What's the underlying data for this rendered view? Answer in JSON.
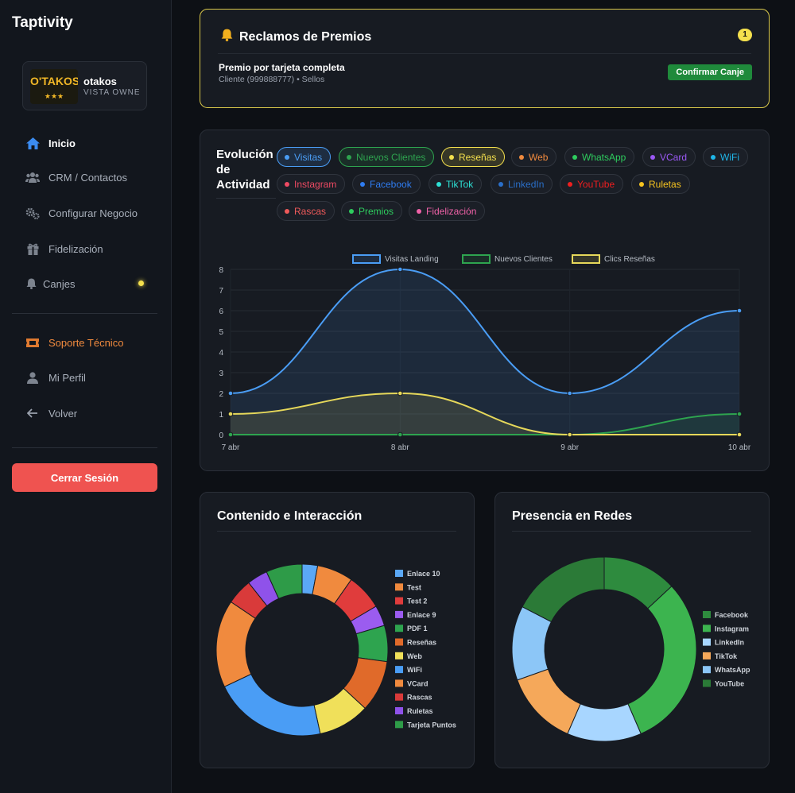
{
  "app": {
    "title": "Taptivity"
  },
  "business": {
    "name": "otakos",
    "role": "VISTA OWNER",
    "logo_text": "O'TAKOS"
  },
  "nav": {
    "items": [
      {
        "label": "Inicio",
        "icon": "home-icon"
      },
      {
        "label": "CRM / Contactos",
        "icon": "users-icon"
      },
      {
        "label": "Configurar Negocio",
        "icon": "gears-icon"
      },
      {
        "label": "Fidelización",
        "icon": "gift-icon"
      },
      {
        "label": "Canjes",
        "icon": "bell-icon"
      }
    ],
    "secondary": [
      {
        "label": "Soporte Técnico",
        "icon": "ticket-icon"
      },
      {
        "label": "Mi Perfil",
        "icon": "user-icon"
      },
      {
        "label": "Volver",
        "icon": "arrow-left-icon"
      }
    ],
    "logout_label": "Cerrar Sesión"
  },
  "claims": {
    "title": "Reclamos de Premios",
    "count": "1",
    "item": {
      "title": "Premio por tarjeta completa",
      "subtitle": "Cliente (999888777) • Sellos",
      "action": "Confirmar Canje"
    }
  },
  "activity": {
    "title": "Evolución de Actividad",
    "chips": [
      {
        "label": "Visitas",
        "color": "#4a9df5",
        "active": true
      },
      {
        "label": "Nuevos Clientes",
        "color": "#2ea44f",
        "active": true
      },
      {
        "label": "Reseñas",
        "color": "#f4e04d",
        "active": true
      },
      {
        "label": "Web",
        "color": "#f08a3e",
        "active": false
      },
      {
        "label": "WhatsApp",
        "color": "#2ecc5e",
        "active": false
      },
      {
        "label": "VCard",
        "color": "#9b59f5",
        "active": false
      },
      {
        "label": "WiFi",
        "color": "#1fb6e8",
        "active": false
      },
      {
        "label": "Instagram",
        "color": "#ef4a63",
        "active": false
      },
      {
        "label": "Facebook",
        "color": "#2f7cf0",
        "active": false
      },
      {
        "label": "TikTok",
        "color": "#2de0d5",
        "active": false
      },
      {
        "label": "LinkedIn",
        "color": "#2a6fc9",
        "active": false
      },
      {
        "label": "YouTube",
        "color": "#ef1f1f",
        "active": false
      },
      {
        "label": "Ruletas",
        "color": "#f7c41f",
        "active": false
      },
      {
        "label": "Rascas",
        "color": "#ef5a5a",
        "active": false
      },
      {
        "label": "Premios",
        "color": "#2ecc5e",
        "active": false
      },
      {
        "label": "Fidelización",
        "color": "#f062a8",
        "active": false
      }
    ]
  },
  "chart_data": [
    {
      "type": "line",
      "x": [
        "7 abr",
        "8 abr",
        "9 abr",
        "10 abr"
      ],
      "series": [
        {
          "name": "Visitas Landing",
          "values": [
            2,
            8,
            2,
            6
          ],
          "color": "#4a9df5"
        },
        {
          "name": "Nuevos Clientes",
          "values": [
            0,
            0,
            0,
            1
          ],
          "color": "#2ea44f"
        },
        {
          "name": "Clics Reseñas",
          "values": [
            1,
            2,
            0,
            0
          ],
          "color": "#e6d85a"
        }
      ],
      "ylim": [
        0,
        8
      ],
      "yticks": [
        0,
        1,
        2,
        3,
        4,
        5,
        6,
        7,
        8
      ],
      "legend": "top",
      "grid": true
    },
    {
      "type": "pie",
      "title": "Contenido e Interacción",
      "labels": [
        "Enlace 10",
        "Test",
        "Test 2",
        "Enlace 9",
        "PDF 1",
        "Reseñas",
        "Web",
        "WiFi",
        "VCard",
        "Rascas",
        "Ruletas",
        "Tarjeta Puntos"
      ],
      "values": [
        3,
        7,
        7,
        4,
        7,
        10,
        10,
        22,
        17,
        5,
        4,
        7
      ],
      "colors": [
        "#5ba8f5",
        "#f08a3e",
        "#e03c3c",
        "#9b5cf0",
        "#2ea44f",
        "#e06a2a",
        "#f0e05a",
        "#4a9df5",
        "#f08a3e",
        "#d93a3a",
        "#8f52ea",
        "#2e9b48"
      ],
      "legend": "right"
    },
    {
      "type": "pie",
      "title": "Presencia en Redes",
      "labels": [
        "Facebook",
        "Instagram",
        "LinkedIn",
        "TikTok",
        "WhatsApp",
        "YouTube"
      ],
      "values": [
        15,
        35,
        15,
        15,
        15,
        20
      ],
      "colors": [
        "#2e8b3e",
        "#3cb44f",
        "#a8d6ff",
        "#f5a85a",
        "#8cc6f7",
        "#2b7a37"
      ],
      "legend": "right"
    }
  ]
}
